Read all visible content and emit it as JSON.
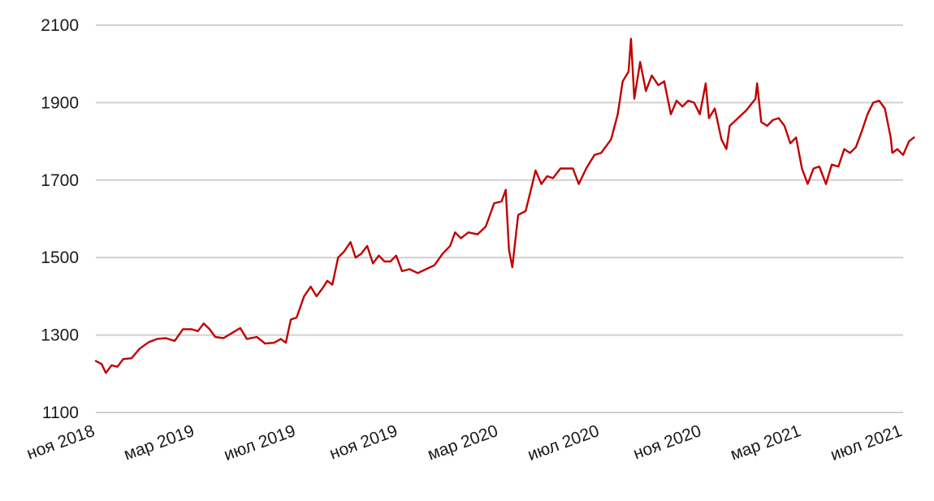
{
  "chart_data": {
    "type": "line",
    "title": "",
    "xlabel": "",
    "ylabel": "",
    "ylim": [
      1100,
      2100
    ],
    "y_ticks": [
      1100,
      1300,
      1500,
      1700,
      1900,
      2100
    ],
    "x_range": [
      "2018-11",
      "2021-07"
    ],
    "x_ticks": [
      {
        "date": "2018-11",
        "label": "ноя 2018"
      },
      {
        "date": "2019-03",
        "label": "мар 2019"
      },
      {
        "date": "2019-07",
        "label": "июл 2019"
      },
      {
        "date": "2019-11",
        "label": "ноя 2019"
      },
      {
        "date": "2020-03",
        "label": "мар 2020"
      },
      {
        "date": "2020-07",
        "label": "июл 2020"
      },
      {
        "date": "2020-11",
        "label": "ноя 2020"
      },
      {
        "date": "2021-03",
        "label": "мар 2021"
      },
      {
        "date": "2021-07",
        "label": "июл 2021"
      }
    ],
    "grid": true,
    "legend": "none",
    "series": [
      {
        "color": "#c00000",
        "points": [
          [
            "2018-11-01",
            1233
          ],
          [
            "2018-11-08",
            1225
          ],
          [
            "2018-11-13",
            1202
          ],
          [
            "2018-11-20",
            1222
          ],
          [
            "2018-11-27",
            1218
          ],
          [
            "2018-12-04",
            1238
          ],
          [
            "2018-12-14",
            1240
          ],
          [
            "2018-12-24",
            1265
          ],
          [
            "2019-01-04",
            1282
          ],
          [
            "2019-01-14",
            1290
          ],
          [
            "2019-01-24",
            1292
          ],
          [
            "2019-02-04",
            1285
          ],
          [
            "2019-02-14",
            1315
          ],
          [
            "2019-02-24",
            1315
          ],
          [
            "2019-03-04",
            1310
          ],
          [
            "2019-03-11",
            1330
          ],
          [
            "2019-03-18",
            1315
          ],
          [
            "2019-03-25",
            1295
          ],
          [
            "2019-04-04",
            1292
          ],
          [
            "2019-04-14",
            1305
          ],
          [
            "2019-04-24",
            1318
          ],
          [
            "2019-05-02",
            1290
          ],
          [
            "2019-05-14",
            1295
          ],
          [
            "2019-05-24",
            1278
          ],
          [
            "2019-06-04",
            1280
          ],
          [
            "2019-06-12",
            1290
          ],
          [
            "2019-06-18",
            1280
          ],
          [
            "2019-06-24",
            1340
          ],
          [
            "2019-07-01",
            1345
          ],
          [
            "2019-07-10",
            1400
          ],
          [
            "2019-07-18",
            1425
          ],
          [
            "2019-07-25",
            1400
          ],
          [
            "2019-08-01",
            1420
          ],
          [
            "2019-08-07",
            1440
          ],
          [
            "2019-08-13",
            1430
          ],
          [
            "2019-08-20",
            1500
          ],
          [
            "2019-08-27",
            1515
          ],
          [
            "2019-09-04",
            1540
          ],
          [
            "2019-09-10",
            1500
          ],
          [
            "2019-09-17",
            1510
          ],
          [
            "2019-09-24",
            1530
          ],
          [
            "2019-10-01",
            1485
          ],
          [
            "2019-10-08",
            1505
          ],
          [
            "2019-10-15",
            1490
          ],
          [
            "2019-10-22",
            1490
          ],
          [
            "2019-10-29",
            1505
          ],
          [
            "2019-11-05",
            1465
          ],
          [
            "2019-11-14",
            1470
          ],
          [
            "2019-11-24",
            1460
          ],
          [
            "2019-12-04",
            1470
          ],
          [
            "2019-12-14",
            1480
          ],
          [
            "2019-12-24",
            1510
          ],
          [
            "2020-01-02",
            1530
          ],
          [
            "2020-01-08",
            1565
          ],
          [
            "2020-01-15",
            1550
          ],
          [
            "2020-01-24",
            1565
          ],
          [
            "2020-02-04",
            1560
          ],
          [
            "2020-02-14",
            1580
          ],
          [
            "2020-02-24",
            1640
          ],
          [
            "2020-03-04",
            1645
          ],
          [
            "2020-03-09",
            1675
          ],
          [
            "2020-03-13",
            1520
          ],
          [
            "2020-03-17",
            1475
          ],
          [
            "2020-03-24",
            1610
          ],
          [
            "2020-04-02",
            1620
          ],
          [
            "2020-04-09",
            1680
          ],
          [
            "2020-04-14",
            1725
          ],
          [
            "2020-04-21",
            1690
          ],
          [
            "2020-04-28",
            1710
          ],
          [
            "2020-05-05",
            1705
          ],
          [
            "2020-05-14",
            1730
          ],
          [
            "2020-05-21",
            1730
          ],
          [
            "2020-05-29",
            1730
          ],
          [
            "2020-06-05",
            1690
          ],
          [
            "2020-06-14",
            1730
          ],
          [
            "2020-06-24",
            1765
          ],
          [
            "2020-07-02",
            1770
          ],
          [
            "2020-07-14",
            1805
          ],
          [
            "2020-07-22",
            1870
          ],
          [
            "2020-07-28",
            1955
          ],
          [
            "2020-08-04",
            1980
          ],
          [
            "2020-08-07",
            2065
          ],
          [
            "2020-08-11",
            1910
          ],
          [
            "2020-08-18",
            2005
          ],
          [
            "2020-08-25",
            1930
          ],
          [
            "2020-09-01",
            1970
          ],
          [
            "2020-09-09",
            1945
          ],
          [
            "2020-09-16",
            1955
          ],
          [
            "2020-09-24",
            1870
          ],
          [
            "2020-10-01",
            1905
          ],
          [
            "2020-10-08",
            1890
          ],
          [
            "2020-10-15",
            1905
          ],
          [
            "2020-10-22",
            1900
          ],
          [
            "2020-10-29",
            1870
          ],
          [
            "2020-11-05",
            1950
          ],
          [
            "2020-11-09",
            1860
          ],
          [
            "2020-11-16",
            1885
          ],
          [
            "2020-11-24",
            1805
          ],
          [
            "2020-11-30",
            1780
          ],
          [
            "2020-12-04",
            1840
          ],
          [
            "2020-12-14",
            1860
          ],
          [
            "2020-12-24",
            1880
          ],
          [
            "2021-01-04",
            1910
          ],
          [
            "2021-01-06",
            1950
          ],
          [
            "2021-01-11",
            1850
          ],
          [
            "2021-01-18",
            1840
          ],
          [
            "2021-01-25",
            1855
          ],
          [
            "2021-02-01",
            1860
          ],
          [
            "2021-02-08",
            1840
          ],
          [
            "2021-02-15",
            1795
          ],
          [
            "2021-02-22",
            1810
          ],
          [
            "2021-03-01",
            1730
          ],
          [
            "2021-03-08",
            1690
          ],
          [
            "2021-03-15",
            1730
          ],
          [
            "2021-03-22",
            1735
          ],
          [
            "2021-03-30",
            1690
          ],
          [
            "2021-04-06",
            1740
          ],
          [
            "2021-04-14",
            1735
          ],
          [
            "2021-04-21",
            1780
          ],
          [
            "2021-04-28",
            1770
          ],
          [
            "2021-05-05",
            1785
          ],
          [
            "2021-05-12",
            1825
          ],
          [
            "2021-05-19",
            1870
          ],
          [
            "2021-05-26",
            1900
          ],
          [
            "2021-06-02",
            1905
          ],
          [
            "2021-06-09",
            1885
          ],
          [
            "2021-06-16",
            1810
          ],
          [
            "2021-06-18",
            1770
          ],
          [
            "2021-06-24",
            1780
          ],
          [
            "2021-07-01",
            1765
          ],
          [
            "2021-07-08",
            1800
          ],
          [
            "2021-07-14",
            1810
          ]
        ]
      }
    ]
  }
}
